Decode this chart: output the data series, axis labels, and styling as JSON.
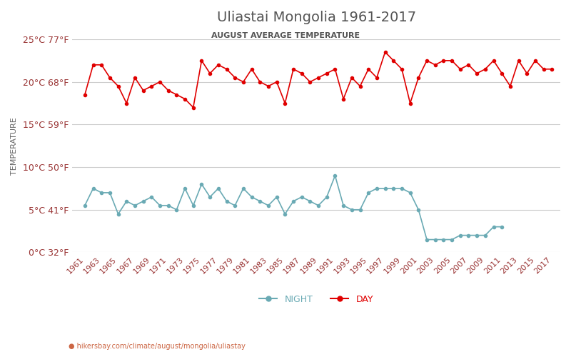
{
  "title": "Uliastai Mongolia 1961-2017",
  "subtitle": "AUGUST AVERAGE TEMPERATURE",
  "ylabel": "TEMPERATURE",
  "watermark": "hikersbay.com/climate/august/mongolia/uliastay",
  "years": [
    1961,
    1962,
    1963,
    1964,
    1965,
    1966,
    1967,
    1968,
    1969,
    1970,
    1971,
    1972,
    1973,
    1974,
    1975,
    1976,
    1977,
    1978,
    1979,
    1980,
    1981,
    1982,
    1983,
    1984,
    1985,
    1986,
    1987,
    1988,
    1989,
    1990,
    1991,
    1992,
    1993,
    1994,
    1995,
    1996,
    1997,
    1998,
    1999,
    2000,
    2001,
    2002,
    2003,
    2004,
    2005,
    2006,
    2007,
    2008,
    2009,
    2010,
    2011,
    2012,
    2013,
    2014,
    2015,
    2016,
    2017
  ],
  "day": [
    18.5,
    22.0,
    22.0,
    20.5,
    19.5,
    17.5,
    20.5,
    19.0,
    19.5,
    20.0,
    19.0,
    18.5,
    18.0,
    17.0,
    22.5,
    21.0,
    22.0,
    21.5,
    20.5,
    20.0,
    21.5,
    20.0,
    19.5,
    20.0,
    17.5,
    21.5,
    21.0,
    20.0,
    20.5,
    21.0,
    21.5,
    18.0,
    20.5,
    19.5,
    21.5,
    20.5,
    23.5,
    22.5,
    21.5,
    17.5,
    20.5,
    22.5,
    22.0,
    22.5,
    22.5,
    21.5,
    22.0,
    21.0,
    21.5,
    22.5,
    21.0,
    19.5,
    22.5,
    21.0,
    22.5,
    21.5,
    21.5
  ],
  "night": [
    5.5,
    7.5,
    7.0,
    7.0,
    4.5,
    6.0,
    5.5,
    6.0,
    6.5,
    5.5,
    5.5,
    5.0,
    7.5,
    5.5,
    8.0,
    6.5,
    7.5,
    6.0,
    5.5,
    7.5,
    6.5,
    6.0,
    5.5,
    6.5,
    4.5,
    6.0,
    6.5,
    6.0,
    5.5,
    6.5,
    9.0,
    5.5,
    5.0,
    5.0,
    7.0,
    7.5,
    7.5,
    7.5,
    7.5,
    7.0,
    5.0,
    1.5,
    1.5,
    1.5,
    1.5,
    2.0,
    2.0,
    2.0,
    2.0,
    3.0,
    3.0,
    null,
    null,
    null,
    null,
    null,
    null
  ],
  "day_color": "#e00000",
  "night_color": "#6aaab4",
  "grid_color": "#cccccc",
  "title_color": "#555555",
  "subtitle_color": "#555555",
  "label_color": "#993333",
  "ylabel_color": "#666666",
  "ylim": [
    0,
    25
  ],
  "yticks_c": [
    0,
    5,
    10,
    15,
    20,
    25
  ],
  "yticks_f": [
    32,
    41,
    50,
    59,
    68,
    77
  ],
  "bg_color": "#ffffff"
}
